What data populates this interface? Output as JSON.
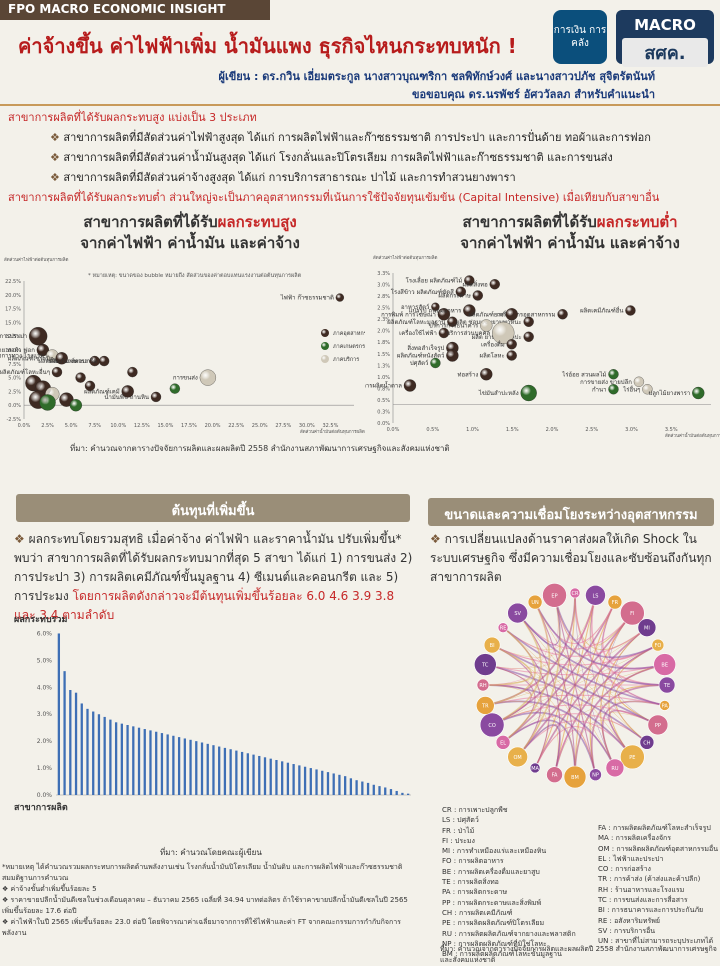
{
  "header": {
    "top_label": "FPO MACRO ECONOMIC INSIGHT",
    "title": "ค่าจ้างขึ้น ค่าไฟฟ้าเพิ่ม น้ำมันแพง ธุรกิจไหนกระทบหนัก !",
    "logo1": "การเงิน การคลัง",
    "logo2_top": "MACRO",
    "logo2_bottom": "สศค.",
    "authors": "ผู้เขียน : ดร.กวิน เอี่ยมตระกูล นางสาวบุณฑริกา ชลพิทักษ์วงศ์ และนางสาวปภัช สุจิตรัตนันท์",
    "thanks": "ขอขอบคุณ ดร.นรพัชร์ อัศววัลลภ สำหรับคำแนะนำ"
  },
  "intro": {
    "line1": "สาขาการผลิตที่ได้รับผลกระทบสูง แบ่งเป็น 3 ประเภท",
    "bullets": [
      "สาขาการผลิตที่มีสัดส่วนค่าไฟฟ้าสูงสุด ได้แก่ การผลิตไฟฟ้าและก๊าซธรรมชาติ การประปา และการปั่นด้าย ทอผ้าและการฟอก",
      "สาขาการผลิตที่มีสัดส่วนค่าน้ำมันสูงสุด ได้แก่ โรงกลั่นและปิโตรเลียม การผลิตไฟฟ้าและก๊าซธรรมชาติ และการขนส่ง",
      "สาขาการผลิตที่มีสัดส่วนค่าจ้างสูงสุด ได้แก่ การบริการสาธารณะ ปาไม้ และการทำสวนยางพารา"
    ],
    "line2": "สาขาการผลิตที่ได้รับผลกระทบต่ำ ส่วนใหญ่จะเป็นภาคอุตสาหกรรมที่เน้นการใช้ปัจจัยทุนเข้มข้น (Capital Intensive) เมื่อเทียบกับสาขาอื่น"
  },
  "scatter_high": {
    "title_pre": "สาขาการผลิตที่ได้รับ",
    "title_hl": "ผลกระทบสูง",
    "title_line2": "จากค่าไฟฟ้า ค่าน้ำมัน และค่าจ้าง",
    "note": "* หมายเหตุ: ขนาดของ bubble หมายถึง สัดส่วนของค่าตอบแทนแรงงานต่อต้นทุนการผลิต",
    "yaxis_label": "สัดส่วนค่าไฟฟ้าต่อต้นทุนการผลิต",
    "xaxis_label": "สัดส่วนค่าน้ำมันต่อต้นทุนการผลิต",
    "legend": [
      "ภาคอุตสาหกรรม",
      "ภาคเกษตรกรรม",
      "ภาคบริการ"
    ],
    "labels": [
      "ไฟฟ้า ก๊าซธรรมชาติ",
      "การประปา",
      "ปั่นด้าย ทอผ้า ฟอก",
      "กิจการทาง โรงแรม",
      "ผลิตภัณฑ์ยางพารา",
      "ผลิตภัณฑ์เซรามิก",
      "ผลิตภัณฑ์คอนกรีต",
      "ผลิตภัณฑ์โลหะอื่นๆ",
      "การขนส่ง",
      "น้ำมันพืช ถ่านหิน",
      "ผลิตภัณฑ์เคมี"
    ]
  },
  "scatter_low": {
    "title_pre": "สาขาการผลิตที่ได้รับ",
    "title_hl": "ผลกระทบต่ำ",
    "title_line2": "จากค่าไฟฟ้า ค่าน้ำมัน และค่าจ้าง",
    "yaxis_label": "สัดส่วนค่าไฟฟ้าต่อต้นทุนการผลิต",
    "xaxis_label": "สัดส่วนค่าน้ำมันต่อต้นทุนการผลิต",
    "labels": [
      "โรงเลื่อย ผลิตภัณฑ์ไม้",
      "ผลิตสิ่งทอ",
      "โรงสีข้าว ผลิตภัณฑ์ขัดสี",
      "ผลิตกระดาษ",
      "อาหารสัตว์",
      "การพิมพ์ การโฆษณา",
      "ผลิตภัณฑ์โลหะมูลฐาน",
      "แปรรูป ถนอมอาหาร",
      "ผลิตเคมีภัณฑ์อื่น",
      "เครื่องจักรอุตสาหกรรม",
      "ผลิตภัณฑ์ยาง",
      "ผลิต ซ่อมแซมยานพาหนะ",
      "บริการการธนาคาร",
      "เครื่องใช้ไฟฟ้า",
      "ผลิต ยานยนต์ศิลปะ",
      "บริการส่วนบุคคล",
      "เครื่องดื่ม",
      "สิ่งทอสำเร็จรูป",
      "ผลิตภัณฑ์หนังสัตว์",
      "ปศุสัตว์",
      "ท่อสร้าง",
      "การผลิตน้ำตาล",
      "ผลิตโลหะ",
      "ไร่อ้อย สวนผลไม้",
      "การขายส่ง ขายปลีก",
      "ไข่มันสำปะหลัง",
      "กำนา",
      "ไร่อื่นๆ",
      "ปลูกไม้ยางพารา"
    ]
  },
  "scatter_source": "ที่มา: คำนวณจากตารางปัจจัยการผลิตและผลผลิตปี 2558 สำนักงานสภาพัฒนาการเศรษฐกิจและสังคมแห่งชาติ",
  "cost_panel": {
    "title": "ต้นทุนที่เพิ่มขึ้น",
    "para": "ผลกระทบโดยรวมสุทธิ เมื่อค่าจ้าง ค่าไฟฟ้า และราคาน้ำมัน ปรับเพิ่มขึ้น* พบว่า สาขาการผลิตที่ได้รับผลกระทบมากที่สุด 5 สาขา ได้แก่ 1) การขนส่ง 2) การประปา 3) การผลิตเคมีภัณฑ์ขั้นมูลฐาน 4) ซีเมนต์และคอนกรีต และ 5) การประมง",
    "para_red": "โดยการผลิตดังกล่าวจะมีต้นทุนเพิ่มขึ้นร้อยละ 6.0 4.6 3.9 3.8 และ 3.4 ตามลำดับ",
    "ylabel": "ผลกระทบรวม",
    "xlabel": "สาขาการผลิต",
    "source": "ที่มา: คำนวณโดยคณะผู้เขียน",
    "notes": [
      "*หมายเหตุ ได้คำนวณรวมผลกระทบการผลิตด้านพลังงานเช่น โรงกลั่นน้ำมันปิโตรเลียม น้ำมันดิบ และการผลิตไฟฟ้าและก๊าซธรรมชาติ สมมติฐานการคำนวณ",
      "ค่าจ้างขั้นต่ำเพิ่มขึ้นร้อยละ 5",
      "ราคาขายปลีกน้ำมันดีเซลในช่วงเดือนตุลาคม – ธันวาคม 2565 เฉลี่ยที่ 34.94 บาทต่อลิตร ถ้าใช้ราคาขายปลีกน้ำมันดีเซลในปี 2565 เพิ่มขึ้นร้อยละ 17.6 ต่อปี",
      "ค่าไฟฟ้าในปี 2565 เพิ่มขึ้นร้อยละ 23.0 ต่อปี โดยพิจารณาค่าเฉลี่ยมาจากการที่ใช้ไฟฟ้าและค่า FT จากคณะกรรมการกำกับกิจการพลังงาน"
    ],
    "y_ticks": [
      "0.0%",
      "1.0%",
      "2.0%",
      "3.0%",
      "4.0%",
      "5.0%",
      "6.0%"
    ]
  },
  "network_panel": {
    "title": "ขนาดและความเชื่อมโยงระหว่างอุตสาหกรรม",
    "para": "การเปลี่ยนแปลงด้านราคาส่งผลให้เกิด Shock ในระบบเศรษฐกิจ ซึ่งมีความเชื่อมโยงและซับซ้อนถึงกันทุกสาขาการผลิต",
    "nodes": [
      "CR",
      "LS",
      "FR",
      "FI",
      "MI",
      "FO",
      "BE",
      "TE",
      "PA",
      "PP",
      "CH",
      "PE",
      "RU",
      "NP",
      "BM",
      "FA",
      "MA",
      "OM",
      "EL",
      "CO",
      "TR",
      "RH",
      "TC",
      "BI",
      "RE",
      "SV",
      "UN",
      "EP"
    ],
    "legend_left": [
      "CR : การเพาะปลูกพืช",
      "LS : ปศุสัตว์",
      "FR : ป่าไม้",
      "FI : ประมง",
      "MI : การทำเหมืองแร่และเหมืองหิน",
      "FO : การผลิตอาหาร",
      "BE : การผลิตเครื่องดื่มและยาสูบ",
      "TE : การผลิตสิ่งทอ",
      "PA : การผลิตกระดาษ",
      "PP : การผลิตกระดาษและสิ่งพิมพ์",
      "CH : การผลิตเคมีภัณฑ์",
      "PE : การผลิตผลิตภัณฑ์ปิโตรเลียม",
      "RU : การผลิตผลิตภัณฑ์จากยางและพลาสติก",
      "NP : การผลิตผลิตภัณฑ์ที่มิใช่โลหะ",
      "BM : การผลิตผลิตภัณฑ์โลหะขั้นมูลฐาน"
    ],
    "legend_right": [
      "FA : การผลิตผลิตภัณฑ์โลหะสำเร็จรูป",
      "MA : การผลิตเครื่องจักร",
      "OM : การผลิตผลิตภัณฑ์อุตสาหกรรมอื่น",
      "EL : ไฟฟ้าและประปา",
      "CO : การก่อสร้าง",
      "TR : การค้าส่ง (ค้าส่งและค้าปลีก)",
      "RH : ร้านอาหารและโรงแรม",
      "TC : การขนส่งและการสื่อสาร",
      "BI : การธนาคารและการประกันภัย",
      "RE : อสังหาริมทรัพย์",
      "SV : การบริการอื่น",
      "UN : สาขาที่ไม่สามารถระบุประเภทได้"
    ],
    "source": "ที่มา: คำนวณจากตารางปัจจัยการผลิตและผลผลิตปี 2558 สำนักงานสภาพัฒนาการเศรษฐกิจและสังคมแห่งชาติ"
  },
  "colors": {
    "industry": "#3e2a22",
    "agriculture": "#2f6b2a",
    "service": "#cfc8b8",
    "bar": "#3e6fb5",
    "accent": "#c62828"
  },
  "chart_data": [
    {
      "type": "scatter",
      "title": "สาขาการผลิตที่ได้รับผลกระทบสูง จากค่าไฟฟ้า ค่าน้ำมัน และค่าจ้าง",
      "xlabel": "สัดส่วนค่าน้ำมันต่อต้นทุนการผลิต",
      "ylabel": "สัดส่วนค่าไฟฟ้าต่อต้นทุนการผลิต",
      "xlim": [
        0,
        35
      ],
      "ylim": [
        -2.5,
        22.5
      ],
      "x_ticks": [
        "0.0%",
        "2.5%",
        "5.0%",
        "7.5%",
        "10.0%",
        "12.5%",
        "15.0%",
        "17.5%",
        "20.0%",
        "22.5%",
        "25.0%",
        "27.5%",
        "30.0%",
        "32.5%"
      ],
      "y_ticks": [
        "-2.5%",
        "0.0%",
        "2.5%",
        "5.0%",
        "7.5%",
        "10.0%",
        "12.5%",
        "15.0%",
        "17.5%",
        "20.0%",
        "22.5%"
      ],
      "points": [
        {
          "label": "ไฟฟ้า ก๊าซธรรมชาติ",
          "x": 33.5,
          "y": 19.5,
          "size": 4,
          "group": "industry"
        },
        {
          "label": "การประปา",
          "x": 1.5,
          "y": 12.5,
          "size": 9,
          "group": "industry"
        },
        {
          "label": "ปั่นด้าย ทอผ้า ฟอก",
          "x": 2.0,
          "y": 10.0,
          "size": 6,
          "group": "industry"
        },
        {
          "label": "กิจการทาง โรงแรม",
          "x": 3.0,
          "y": 9.0,
          "size": 6,
          "group": "service"
        },
        {
          "label": "ผลิตภัณฑ์ยางพารา",
          "x": 7.5,
          "y": 8.0,
          "size": 5,
          "group": "industry"
        },
        {
          "label": "ผลิตภัณฑ์เซรามิก",
          "x": 4.0,
          "y": 8.5,
          "size": 6,
          "group": "industry"
        },
        {
          "label": "ผลิตภัณฑ์คอนกรีต",
          "x": 8.5,
          "y": 8.0,
          "size": 5,
          "group": "industry"
        },
        {
          "label": "ผลิตภัณฑ์โลหะอื่นๆ",
          "x": 3.5,
          "y": 6.0,
          "size": 5,
          "group": "industry"
        },
        {
          "label": "การขนส่ง",
          "x": 19.5,
          "y": 5.0,
          "size": 8,
          "group": "service"
        },
        {
          "label": "น้ำมันพืช ถ่านหิน",
          "x": 14.0,
          "y": 1.5,
          "size": 5,
          "group": "industry"
        },
        {
          "label": "ผลิตภัณฑ์เคมี",
          "x": 11.0,
          "y": 2.5,
          "size": 6,
          "group": "industry"
        },
        {
          "label": "",
          "x": 1.0,
          "y": 4.0,
          "size": 8,
          "group": "industry"
        },
        {
          "label": "",
          "x": 2.0,
          "y": 3.0,
          "size": 8,
          "group": "industry"
        },
        {
          "label": "",
          "x": 3.0,
          "y": 2.0,
          "size": 7,
          "group": "service"
        },
        {
          "label": "",
          "x": 1.5,
          "y": 1.0,
          "size": 9,
          "group": "industry"
        },
        {
          "label": "",
          "x": 2.5,
          "y": 0.5,
          "size": 8,
          "group": "agriculture"
        },
        {
          "label": "",
          "x": 4.5,
          "y": 1.0,
          "size": 7,
          "group": "industry"
        },
        {
          "label": "",
          "x": 5.5,
          "y": 0.0,
          "size": 6,
          "group": "agriculture"
        },
        {
          "label": "",
          "x": 7.0,
          "y": 3.5,
          "size": 5,
          "group": "industry"
        },
        {
          "label": "",
          "x": 6.0,
          "y": 5.0,
          "size": 5,
          "group": "industry"
        },
        {
          "label": "",
          "x": 16.0,
          "y": 3.0,
          "size": 5,
          "group": "agriculture"
        },
        {
          "label": "",
          "x": 11.5,
          "y": 6.0,
          "size": 5,
          "group": "industry"
        }
      ]
    },
    {
      "type": "scatter",
      "title": "สาขาการผลิตที่ได้รับผลกระทบต่ำ จากค่าไฟฟ้า ค่าน้ำมัน และค่าจ้าง",
      "xlabel": "สัดส่วนค่าน้ำมันต่อต้นทุนการผลิต",
      "ylabel": "สัดส่วนค่าไฟฟ้าต่อต้นทุนการผลิต",
      "xlim": [
        0,
        3.75
      ],
      "ylim": [
        -0.5,
        3.5
      ],
      "x_ticks": [
        "0.0%",
        "0.5%",
        "1.0%",
        "1.5%",
        "2.0%",
        "2.5%",
        "3.0%",
        "3.5%"
      ],
      "y_ticks": [
        "0.0%",
        "0.3%",
        "0.5%",
        "0.8%",
        "1.0%",
        "1.3%",
        "1.5%",
        "1.8%",
        "2.0%",
        "2.3%",
        "2.5%",
        "2.8%",
        "3.0%",
        "3.3%"
      ],
      "points": [
        {
          "label": "โรงเลื่อย ผลิตภัณฑ์ไม้",
          "x": 0.9,
          "y": 3.3,
          "size": 5,
          "group": "industry"
        },
        {
          "label": "ผลิตสิ่งทอ",
          "x": 1.2,
          "y": 3.2,
          "size": 5,
          "group": "industry"
        },
        {
          "label": "โรงสีข้าว ผลิตภัณฑ์ขัดสี",
          "x": 0.8,
          "y": 3.0,
          "size": 5,
          "group": "industry"
        },
        {
          "label": "ผลิตกระดาษ",
          "x": 1.0,
          "y": 2.9,
          "size": 5,
          "group": "industry"
        },
        {
          "label": "อาหารสัตว์",
          "x": 0.5,
          "y": 2.6,
          "size": 4,
          "group": "industry"
        },
        {
          "label": "การพิมพ์ การโฆษณา",
          "x": 0.6,
          "y": 2.4,
          "size": 6,
          "group": "industry"
        },
        {
          "label": "ผลิตภัณฑ์โลหะมูลฐาน",
          "x": 0.7,
          "y": 2.2,
          "size": 5,
          "group": "industry"
        },
        {
          "label": "แปรรูป ถนอมอาหาร",
          "x": 0.9,
          "y": 2.5,
          "size": 6,
          "group": "industry"
        },
        {
          "label": "ผลิตเคมีภัณฑ์อื่น",
          "x": 2.8,
          "y": 2.5,
          "size": 5,
          "group": "industry"
        },
        {
          "label": "เครื่องจักรอุตสาหกรรม",
          "x": 2.0,
          "y": 2.4,
          "size": 5,
          "group": "industry"
        },
        {
          "label": "ผลิตภัณฑ์ยาง",
          "x": 1.4,
          "y": 2.4,
          "size": 6,
          "group": "industry"
        },
        {
          "label": "ผลิต ซ่อมแซมยานพาหนะ",
          "x": 1.6,
          "y": 2.2,
          "size": 5,
          "group": "industry"
        },
        {
          "label": "บริการการธนาคาร",
          "x": 1.1,
          "y": 2.1,
          "size": 6,
          "group": "service"
        },
        {
          "label": "เครื่องใช้ไฟฟ้า",
          "x": 0.6,
          "y": 1.9,
          "size": 5,
          "group": "industry"
        },
        {
          "label": "ผลิต ยานยนต์ศิลปะ",
          "x": 1.6,
          "y": 1.8,
          "size": 5,
          "group": "industry"
        },
        {
          "label": "บริการส่วนบุคคล",
          "x": 1.3,
          "y": 1.9,
          "size": 11,
          "group": "service"
        },
        {
          "label": "เครื่องดื่ม",
          "x": 1.4,
          "y": 1.6,
          "size": 5,
          "group": "industry"
        },
        {
          "label": "สิ่งทอสำเร็จรูป",
          "x": 0.7,
          "y": 1.5,
          "size": 6,
          "group": "industry"
        },
        {
          "label": "ผลิตภัณฑ์หนังสัตว์",
          "x": 0.7,
          "y": 1.3,
          "size": 6,
          "group": "industry"
        },
        {
          "label": "ปศุสัตว์",
          "x": 0.5,
          "y": 1.1,
          "size": 5,
          "group": "agriculture"
        },
        {
          "label": "ท่อสร้าง",
          "x": 1.1,
          "y": 0.8,
          "size": 6,
          "group": "industry"
        },
        {
          "label": "การผลิตน้ำตาล",
          "x": 0.2,
          "y": 0.5,
          "size": 6,
          "group": "industry"
        },
        {
          "label": "ผลิตโลหะ",
          "x": 1.4,
          "y": 1.3,
          "size": 5,
          "group": "industry"
        },
        {
          "label": "ไร่อ้อย สวนผลไม้",
          "x": 2.6,
          "y": 0.8,
          "size": 5,
          "group": "agriculture"
        },
        {
          "label": "การขายส่ง ขายปลีก",
          "x": 2.9,
          "y": 0.6,
          "size": 5,
          "group": "service"
        },
        {
          "label": "ไข่มันสำปะหลัง",
          "x": 1.6,
          "y": 0.3,
          "size": 8,
          "group": "agriculture"
        },
        {
          "label": "กำนา",
          "x": 2.6,
          "y": 0.4,
          "size": 5,
          "group": "agriculture"
        },
        {
          "label": "ไร่อื่นๆ",
          "x": 3.0,
          "y": 0.4,
          "size": 5,
          "group": "service"
        },
        {
          "label": "ปลูกไม้ยางพารา",
          "x": 3.6,
          "y": 0.3,
          "size": 6,
          "group": "agriculture"
        }
      ]
    },
    {
      "type": "bar",
      "title": "",
      "xlabel": "สาขาการผลิต",
      "ylabel": "ผลกระทบรวม",
      "ylim": [
        0,
        6.5
      ],
      "values": [
        6.0,
        4.6,
        3.9,
        3.8,
        3.4,
        3.2,
        3.1,
        3.0,
        2.9,
        2.8,
        2.7,
        2.65,
        2.6,
        2.55,
        2.5,
        2.45,
        2.4,
        2.35,
        2.3,
        2.25,
        2.2,
        2.15,
        2.1,
        2.05,
        2.0,
        1.95,
        1.9,
        1.85,
        1.8,
        1.75,
        1.7,
        1.65,
        1.6,
        1.55,
        1.5,
        1.45,
        1.4,
        1.35,
        1.3,
        1.25,
        1.2,
        1.15,
        1.1,
        1.05,
        1.0,
        0.95,
        0.9,
        0.85,
        0.8,
        0.75,
        0.7,
        0.62,
        0.55,
        0.5,
        0.45,
        0.38,
        0.33,
        0.28,
        0.22,
        0.15,
        0.08,
        0.05
      ]
    }
  ]
}
